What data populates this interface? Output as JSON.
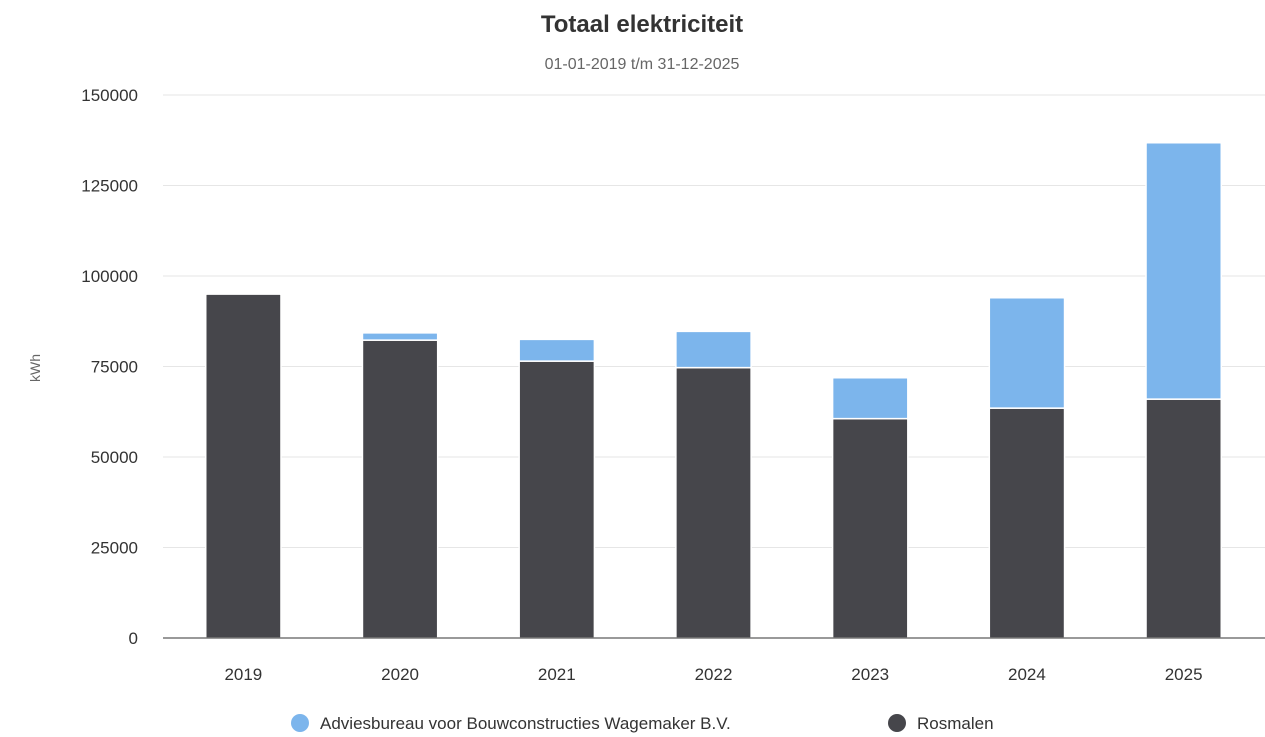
{
  "chart_data": {
    "type": "bar",
    "stacked": true,
    "title": "Totaal elektriciteit",
    "subtitle": "01-01-2019 t/m 31-12-2025",
    "xlabel": "",
    "ylabel": "kWh",
    "ylim": [
      0,
      150000
    ],
    "yticks": [
      "0",
      "25000",
      "50000",
      "75000",
      "100000",
      "125000",
      "150000"
    ],
    "categories": [
      "2019",
      "2020",
      "2021",
      "2022",
      "2023",
      "2024",
      "2025"
    ],
    "series": [
      {
        "name": "Rosmalen",
        "color": "#46464b",
        "values": [
          95000,
          82300,
          76500,
          74700,
          60600,
          63500,
          66000
        ]
      },
      {
        "name": "Adviesbureau voor Bouwconstructies Wagemaker B.V.",
        "color": "#7cb5ec",
        "values": [
          0,
          2000,
          6000,
          10000,
          11300,
          30500,
          70800
        ]
      }
    ],
    "grid": true,
    "legend_position": "bottom-center",
    "legend_order": [
      "Adviesbureau voor Bouwconstructies Wagemaker B.V.",
      "Rosmalen"
    ]
  }
}
